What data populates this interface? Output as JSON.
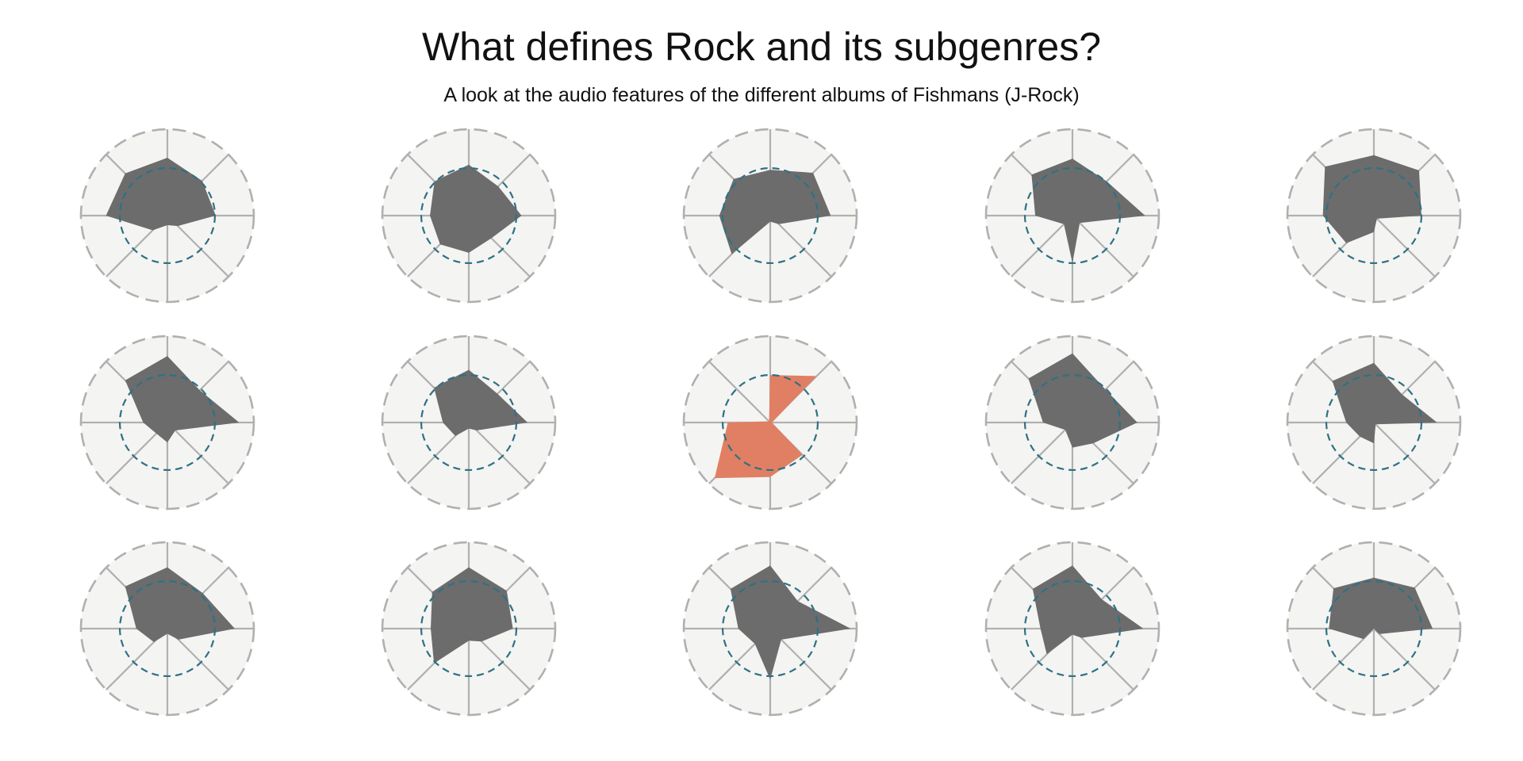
{
  "title": "What defines Rock and its subgenres?",
  "subtitle": "A look at the audio features of the different albums of Fishmans (J-Rock)",
  "colors": {
    "panel_bg": "#f4f4f2",
    "grid": "#b0b0b0",
    "reference": "#2e7184",
    "shape": "#6c6c6c",
    "highlight": "#e07f63"
  },
  "chart_data": {
    "type": "radar",
    "axes_count": 8,
    "rmax": 1.0,
    "reference_level": 0.55,
    "grid": true,
    "highlight_index": 7,
    "series": [
      {
        "values": [
          0.67,
          0.57,
          0.56,
          0.17,
          0.11,
          0.24,
          0.71,
          0.69
        ]
      },
      {
        "values": [
          0.59,
          0.48,
          0.61,
          0.37,
          0.43,
          0.47,
          0.45,
          0.56
        ]
      },
      {
        "values": [
          0.53,
          0.7,
          0.7,
          0.14,
          0.07,
          0.63,
          0.59,
          0.6
        ]
      },
      {
        "values": [
          0.66,
          0.56,
          0.84,
          0.12,
          0.55,
          0.14,
          0.43,
          0.67
        ]
      },
      {
        "values": [
          0.7,
          0.74,
          0.55,
          0.05,
          0.19,
          0.45,
          0.59,
          0.8
        ]
      },
      {
        "values": [
          0.77,
          0.53,
          0.83,
          0.13,
          0.23,
          0.18,
          0.28,
          0.69
        ]
      },
      {
        "values": [
          0.61,
          0.47,
          0.68,
          0.13,
          0.07,
          0.22,
          0.3,
          0.57
        ]
      },
      {
        "values": [
          0.55,
          0.76,
          0.02,
          0.53,
          0.63,
          0.91,
          0.49,
          0.02
        ]
      },
      {
        "values": [
          0.8,
          0.54,
          0.75,
          0.34,
          0.29,
          0.12,
          0.34,
          0.72
        ]
      },
      {
        "values": [
          0.69,
          0.46,
          0.73,
          0.03,
          0.24,
          0.23,
          0.32,
          0.68
        ]
      },
      {
        "values": [
          0.71,
          0.58,
          0.78,
          0.18,
          0.06,
          0.22,
          0.36,
          0.69
        ]
      },
      {
        "values": [
          0.71,
          0.62,
          0.51,
          0.21,
          0.14,
          0.57,
          0.44,
          0.6
        ]
      },
      {
        "values": [
          0.73,
          0.45,
          0.93,
          0.18,
          0.59,
          0.25,
          0.37,
          0.65
        ]
      },
      {
        "values": [
          0.73,
          0.48,
          0.82,
          0.15,
          0.07,
          0.42,
          0.37,
          0.65
        ]
      },
      {
        "values": [
          0.59,
          0.67,
          0.68,
          0.09,
          0.0,
          0.17,
          0.52,
          0.66
        ]
      }
    ]
  }
}
